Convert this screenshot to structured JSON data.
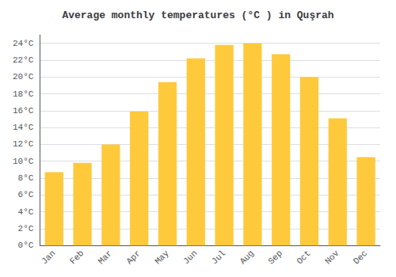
{
  "chart_data": {
    "type": "bar",
    "title": "Average monthly temperatures (°C ) in Quşrah",
    "categories": [
      "Jan",
      "Feb",
      "Mar",
      "Apr",
      "May",
      "Jun",
      "Jul",
      "Aug",
      "Sep",
      "Oct",
      "Nov",
      "Dec"
    ],
    "values": [
      8.7,
      9.8,
      12.0,
      15.9,
      19.4,
      22.2,
      23.8,
      24.0,
      22.7,
      20.0,
      15.1,
      10.5
    ],
    "color": "#FFC93C",
    "ylim": [
      0,
      25
    ],
    "yticks": [
      {
        "value": 0,
        "label": "0°C"
      },
      {
        "value": 2,
        "label": "2°C"
      },
      {
        "value": 4,
        "label": "4°C"
      },
      {
        "value": 6,
        "label": "6°C"
      },
      {
        "value": 8,
        "label": "8°C"
      },
      {
        "value": 10,
        "label": "10°C"
      },
      {
        "value": 12,
        "label": "12°C"
      },
      {
        "value": 14,
        "label": "14°C"
      },
      {
        "value": 16,
        "label": "16°C"
      },
      {
        "value": 18,
        "label": "18°C"
      },
      {
        "value": 20,
        "label": "20°C"
      },
      {
        "value": 22,
        "label": "22°C"
      },
      {
        "value": 24,
        "label": "24°C"
      }
    ],
    "grid": true
  }
}
